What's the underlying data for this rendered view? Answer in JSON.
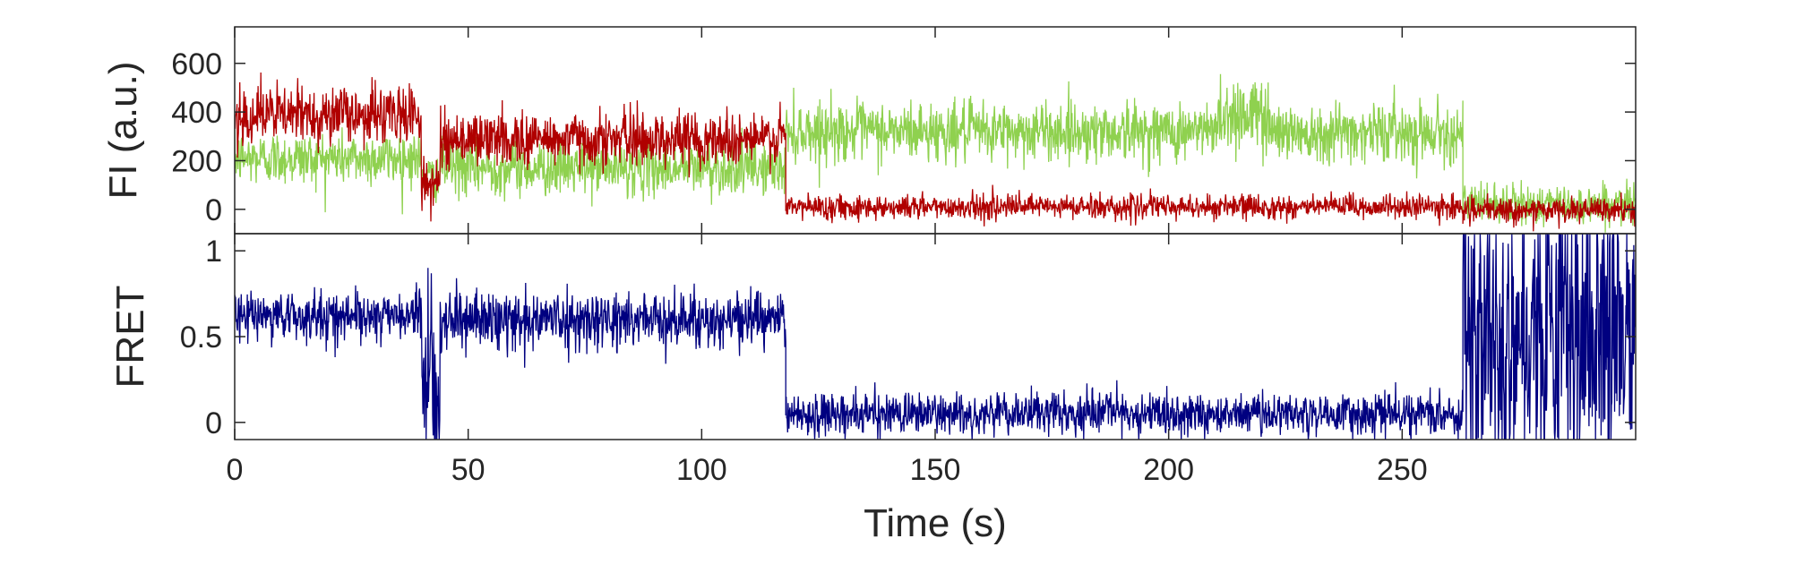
{
  "chart_data": [
    {
      "type": "line",
      "title": "",
      "xlabel": "",
      "ylabel": "FI (a.u.)",
      "xlim": [
        0,
        300
      ],
      "ylim": [
        -100,
        750
      ],
      "xticks": [
        0,
        50,
        100,
        150,
        200,
        250
      ],
      "yticks": [
        0,
        200,
        400,
        600
      ],
      "yticklabels": [
        "0",
        "200",
        "400",
        "600"
      ],
      "series": [
        {
          "color": "#8fd14f",
          "segments": [
            {
              "x": [
                0,
                40
              ],
              "mean": 210,
              "sd": 55
            },
            {
              "x": [
                40,
                44
              ],
              "mean": 130,
              "sd": 45
            },
            {
              "x": [
                44,
                118
              ],
              "mean": 170,
              "sd": 55
            },
            {
              "x": [
                118,
                210
              ],
              "mean": 320,
              "sd": 60
            },
            {
              "x": [
                210,
                222
              ],
              "mean": 390,
              "sd": 80
            },
            {
              "x": [
                222,
                263
              ],
              "mean": 320,
              "sd": 60
            },
            {
              "x": [
                263,
                300
              ],
              "mean": 20,
              "sd": 40
            }
          ]
        },
        {
          "color": "#b00000",
          "segments": [
            {
              "x": [
                0,
                40
              ],
              "mean": 390,
              "sd": 60
            },
            {
              "x": [
                40,
                44
              ],
              "mean": 100,
              "sd": 50
            },
            {
              "x": [
                44,
                118
              ],
              "mean": 290,
              "sd": 55
            },
            {
              "x": [
                118,
                263
              ],
              "mean": 10,
              "sd": 25
            },
            {
              "x": [
                263,
                300
              ],
              "mean": -5,
              "sd": 25
            }
          ]
        }
      ]
    },
    {
      "type": "line",
      "title": "",
      "xlabel": "Time (s)",
      "ylabel": "FRET",
      "xlim": [
        0,
        300
      ],
      "ylim": [
        -0.1,
        1.1
      ],
      "xticks": [
        0,
        50,
        100,
        150,
        200,
        250
      ],
      "xticklabels": [
        "0",
        "50",
        "100",
        "150",
        "200",
        "250"
      ],
      "yticks": [
        0,
        0.5,
        1
      ],
      "yticklabels": [
        "0",
        "0.5",
        "1"
      ],
      "series": [
        {
          "color": "#000080",
          "segments": [
            {
              "x": [
                0,
                40
              ],
              "mean": 0.62,
              "sd": 0.07
            },
            {
              "x": [
                40,
                44
              ],
              "mean": 0.25,
              "sd": 0.25
            },
            {
              "x": [
                44,
                118
              ],
              "mean": 0.6,
              "sd": 0.08
            },
            {
              "x": [
                118,
                263
              ],
              "mean": 0.05,
              "sd": 0.06
            },
            {
              "x": [
                263,
                300
              ],
              "mean": 0.55,
              "sd": 0.45
            }
          ]
        }
      ]
    }
  ]
}
